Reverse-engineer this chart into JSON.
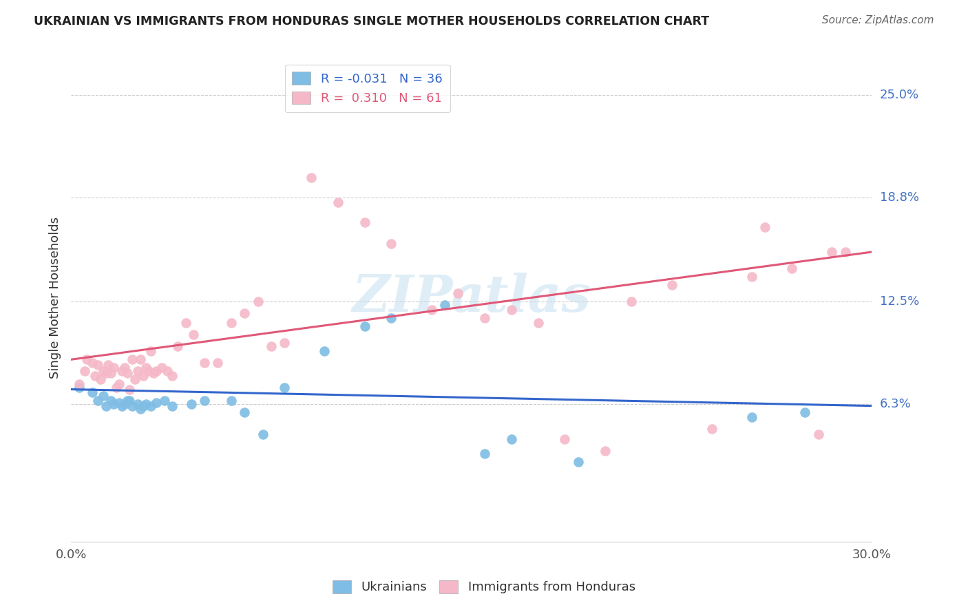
{
  "title": "UKRAINIAN VS IMMIGRANTS FROM HONDURAS SINGLE MOTHER HOUSEHOLDS CORRELATION CHART",
  "source": "Source: ZipAtlas.com",
  "ylabel": "Single Mother Households",
  "ytick_labels": [
    "6.3%",
    "12.5%",
    "18.8%",
    "25.0%"
  ],
  "ytick_values": [
    0.063,
    0.125,
    0.188,
    0.25
  ],
  "xlim": [
    0.0,
    0.3
  ],
  "ylim": [
    -0.02,
    0.275
  ],
  "legend_blue_r": "-0.031",
  "legend_blue_n": "36",
  "legend_pink_r": "0.310",
  "legend_pink_n": "61",
  "blue_color": "#7fbde4",
  "pink_color": "#f5b8c8",
  "blue_line_color": "#3366cc",
  "pink_line_color": "#e05878",
  "watermark": "ZIPatlas",
  "blue_scatter_x": [
    0.003,
    0.008,
    0.01,
    0.012,
    0.013,
    0.015,
    0.016,
    0.018,
    0.019,
    0.02,
    0.021,
    0.022,
    0.023,
    0.025,
    0.026,
    0.027,
    0.028,
    0.03,
    0.032,
    0.035,
    0.038,
    0.045,
    0.05,
    0.06,
    0.065,
    0.072,
    0.08,
    0.095,
    0.11,
    0.12,
    0.14,
    0.155,
    0.165,
    0.19,
    0.255,
    0.275
  ],
  "blue_scatter_y": [
    0.073,
    0.07,
    0.065,
    0.068,
    0.062,
    0.065,
    0.063,
    0.064,
    0.062,
    0.063,
    0.065,
    0.065,
    0.062,
    0.063,
    0.06,
    0.062,
    0.063,
    0.062,
    0.064,
    0.065,
    0.062,
    0.063,
    0.065,
    0.065,
    0.058,
    0.045,
    0.073,
    0.095,
    0.11,
    0.115,
    0.123,
    0.033,
    0.042,
    0.028,
    0.055,
    0.058
  ],
  "pink_scatter_x": [
    0.003,
    0.005,
    0.006,
    0.008,
    0.009,
    0.01,
    0.011,
    0.012,
    0.013,
    0.014,
    0.015,
    0.016,
    0.017,
    0.018,
    0.019,
    0.02,
    0.021,
    0.022,
    0.023,
    0.024,
    0.025,
    0.026,
    0.027,
    0.028,
    0.029,
    0.03,
    0.031,
    0.032,
    0.034,
    0.036,
    0.038,
    0.04,
    0.043,
    0.046,
    0.05,
    0.055,
    0.06,
    0.065,
    0.07,
    0.075,
    0.08,
    0.09,
    0.1,
    0.11,
    0.12,
    0.135,
    0.145,
    0.155,
    0.165,
    0.175,
    0.185,
    0.2,
    0.21,
    0.225,
    0.24,
    0.255,
    0.26,
    0.27,
    0.28,
    0.285,
    0.29
  ],
  "pink_scatter_y": [
    0.075,
    0.083,
    0.09,
    0.088,
    0.08,
    0.087,
    0.078,
    0.083,
    0.082,
    0.087,
    0.082,
    0.085,
    0.073,
    0.075,
    0.083,
    0.085,
    0.082,
    0.072,
    0.09,
    0.078,
    0.083,
    0.09,
    0.08,
    0.085,
    0.083,
    0.095,
    0.082,
    0.083,
    0.085,
    0.083,
    0.08,
    0.098,
    0.112,
    0.105,
    0.088,
    0.088,
    0.112,
    0.118,
    0.125,
    0.098,
    0.1,
    0.2,
    0.185,
    0.173,
    0.16,
    0.12,
    0.13,
    0.115,
    0.12,
    0.112,
    0.042,
    0.035,
    0.125,
    0.135,
    0.048,
    0.14,
    0.17,
    0.145,
    0.045,
    0.155,
    0.155
  ],
  "blue_line_y0": 0.072,
  "blue_line_y1": 0.062,
  "pink_line_y0": 0.09,
  "pink_line_y1": 0.155
}
